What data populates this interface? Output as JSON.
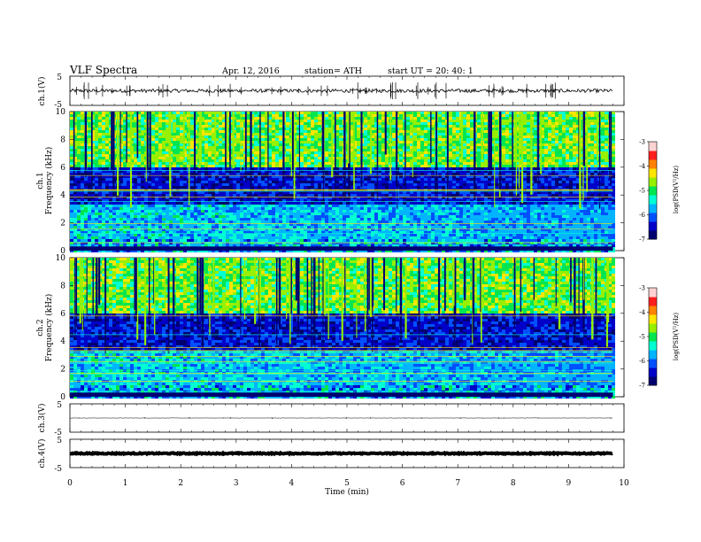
{
  "header": {
    "title": "VLF  Spectra",
    "date": "Apr. 12, 2016",
    "station": "station= ATH",
    "start": "start  UT  =  20: 40: 1"
  },
  "chart_data": [
    {
      "type": "line",
      "panel": "ch1-waveform",
      "ylabel": "ch.1(V)",
      "ylim": [
        -5,
        5
      ],
      "yticks": [
        "5",
        "-5"
      ],
      "xlim": [
        0,
        9.8
      ],
      "baseline": 0,
      "series_color": "#000000"
    },
    {
      "type": "heatmap",
      "panel": "ch1-spectrogram",
      "ylabel": "ch.1\nFrequency (kHz)",
      "ylabel_lines": [
        "ch.1",
        "Frequency (kHz)"
      ],
      "ylim": [
        0,
        10
      ],
      "yticks": [
        "0",
        "2",
        "4",
        "6",
        "8",
        "10"
      ],
      "xlim": [
        0,
        9.8
      ],
      "colorbar": {
        "label": "log(PSD(V²/Hz)",
        "range": [
          -7,
          -3
        ],
        "ticks": [
          "-3",
          "-4",
          "-5",
          "-6",
          "-7"
        ]
      }
    },
    {
      "type": "heatmap",
      "panel": "ch2-spectrogram",
      "ylabel": "ch.2\nFrequency (kHz)",
      "ylabel_lines": [
        "ch.2",
        "Frequency (kHz)"
      ],
      "ylim": [
        0,
        10
      ],
      "yticks": [
        "0",
        "2",
        "4",
        "6",
        "8",
        "10"
      ],
      "xlim": [
        0,
        9.8
      ],
      "colorbar": {
        "label": "log(PSD(V²/Hz)",
        "range": [
          -7,
          -3
        ],
        "ticks": [
          "-3",
          "-4",
          "-5",
          "-6",
          "-7"
        ]
      }
    },
    {
      "type": "line",
      "panel": "ch3-waveform",
      "ylabel": "ch.3(V)",
      "ylim": [
        -5,
        5
      ],
      "yticks": [
        "5",
        "-5"
      ],
      "xlim": [
        0,
        9.8
      ],
      "baseline": 0,
      "series_color": "#000000"
    },
    {
      "type": "line",
      "panel": "ch4-waveform",
      "ylabel": "ch.4(V)",
      "ylim": [
        -5,
        5
      ],
      "yticks": [
        "5",
        "-5"
      ],
      "xlim": [
        0,
        9.8
      ],
      "baseline": 0,
      "series_color": "#000000"
    }
  ],
  "xaxis": {
    "label": "Time  (min)",
    "range": [
      0,
      10
    ],
    "ticks": [
      "0",
      "1",
      "2",
      "3",
      "4",
      "5",
      "6",
      "7",
      "8",
      "9",
      "10"
    ]
  },
  "colormap": [
    "#000070",
    "#0000c8",
    "#0050ff",
    "#00b4ff",
    "#00ffd2",
    "#00e650",
    "#96f000",
    "#ffe600",
    "#ff8200",
    "#ff1e1e",
    "#ffd2d2"
  ]
}
